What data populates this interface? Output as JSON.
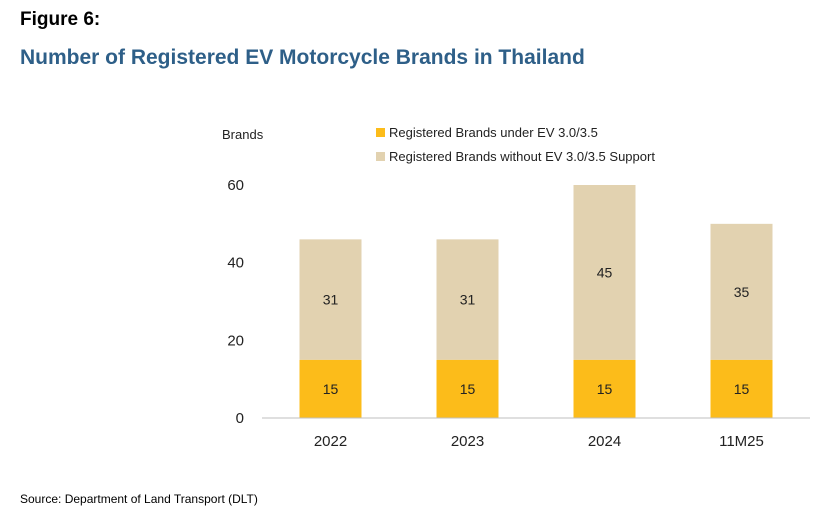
{
  "figure": {
    "label": "Figure 6:",
    "title": "Number of Registered EV Motorcycle Brands in Thailand",
    "source": "Source: Department of Land Transport (DLT)"
  },
  "chart_data": {
    "type": "bar",
    "stacked": true,
    "title": "Number of Registered EV Motorcycle Brands in Thailand",
    "ylabel": "Brands",
    "xlabel": "",
    "categories": [
      "2022",
      "2023",
      "2024",
      "11M25"
    ],
    "series": [
      {
        "name": "Registered Brands under EV 3.0/3.5",
        "values": [
          15,
          15,
          15,
          15
        ],
        "color": "#fcbc1a"
      },
      {
        "name": "Registered Brands without EV 3.0/3.5 Support",
        "values": [
          31,
          31,
          45,
          35
        ],
        "color": "#e2d2b0"
      }
    ],
    "ylim": [
      0,
      60
    ],
    "yticks": [
      0,
      20,
      40,
      60
    ],
    "grid": false,
    "legend_position": "top"
  }
}
